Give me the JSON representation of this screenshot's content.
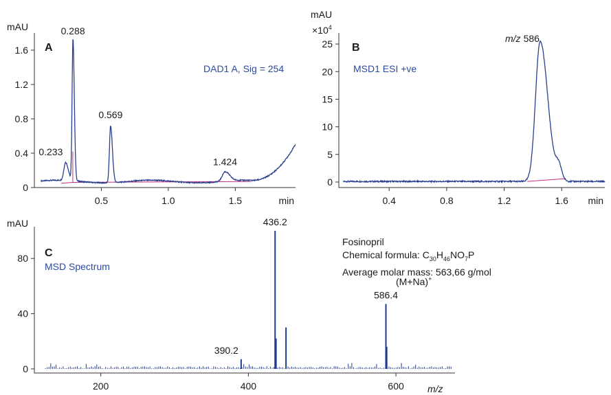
{
  "colors": {
    "trace": "#2a3f8f",
    "baseline": "#c0307a",
    "label": "#2a4aa0",
    "spectrum": "#1f3a93"
  },
  "chart_data": [
    {
      "type": "line",
      "panel": "A",
      "series_label": "DAD1 A, Sig = 254",
      "yunit": "mAU",
      "xunit": "min",
      "xlim": [
        0,
        1.95
      ],
      "ylim": [
        0,
        1.8
      ],
      "xticks": [
        "0.5",
        "1.0",
        "1.5",
        "min"
      ],
      "yticks": [
        "0",
        "0.4",
        "0.8",
        "1.2",
        "1.6"
      ],
      "xtick_values": [
        0.5,
        1.0,
        1.5
      ],
      "ytick_values": [
        0,
        0.4,
        0.8,
        1.2,
        1.6
      ],
      "peaks": [
        {
          "x": 0.233,
          "y": 0.28,
          "label": "0.233"
        },
        {
          "x": 0.288,
          "y": 1.72,
          "label": "0.288"
        },
        {
          "x": 0.569,
          "y": 0.73,
          "label": "0.569"
        },
        {
          "x": 1.424,
          "y": 0.18,
          "label": "1.424"
        }
      ],
      "baseline_start": 0.07,
      "rise": {
        "start_x": 1.62,
        "end_x": 1.95,
        "end_y": 0.52
      }
    },
    {
      "type": "line",
      "panel": "B",
      "series_label": "MSD1 ESI +ve",
      "yunit": "mAU",
      "yunit_multiplier": "×10",
      "yunit_exponent": "4",
      "xunit": "min",
      "xlim": [
        0.05,
        1.9
      ],
      "ylim": [
        -1,
        27
      ],
      "xticks": [
        "0.4",
        "0.8",
        "1.2",
        "1.6",
        "min"
      ],
      "yticks": [
        "0",
        "5",
        "10",
        "15",
        "20",
        "25"
      ],
      "xtick_values": [
        0.4,
        0.8,
        1.2,
        1.6
      ],
      "ytick_values": [
        0,
        5,
        10,
        15,
        20,
        25
      ],
      "peak_label_prefix": "m/z",
      "peak_label_value": "586",
      "peaks": [
        {
          "x": 1.45,
          "y": 25.5
        }
      ]
    },
    {
      "type": "bar",
      "panel": "C",
      "series_label": "MSD Spectrum",
      "yunit": "mAU",
      "xunit": "m/z",
      "xlim": [
        110,
        680
      ],
      "ylim": [
        -3,
        103
      ],
      "xticks": [
        "200",
        "400",
        "600"
      ],
      "yticks": [
        "0",
        "40",
        "80"
      ],
      "xtick_values": [
        200,
        400,
        600
      ],
      "ytick_values": [
        0,
        40,
        80
      ],
      "peaks": [
        {
          "x": 390.2,
          "y": 7,
          "label": "390.2"
        },
        {
          "x": 436.2,
          "y": 100,
          "label": "436.2"
        },
        {
          "x": 437.5,
          "y": 22
        },
        {
          "x": 451.0,
          "y": 30
        },
        {
          "x": 586.4,
          "y": 47,
          "label": "586.4"
        },
        {
          "x": 587.5,
          "y": 16
        }
      ],
      "adduct_label": "(M+Na)",
      "adduct_superscript": "+"
    }
  ],
  "compound": {
    "name": "Fosinopril",
    "formula_prefix": "Chemical formula: ",
    "formula_parts": [
      {
        "text": "C",
        "sub": "30"
      },
      {
        "text": "H",
        "sub": "46"
      },
      {
        "text": "NO",
        "sub": "7"
      },
      {
        "text": "P",
        "sub": ""
      }
    ],
    "molar_mass": "Average molar mass: 563,66 g/mol"
  }
}
